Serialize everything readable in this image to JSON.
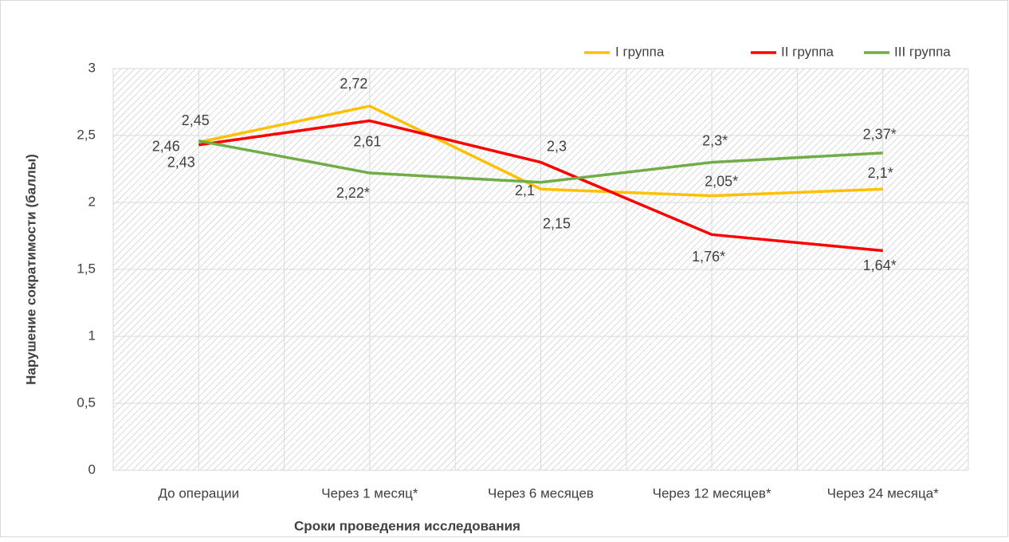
{
  "chart_data": {
    "type": "line",
    "x_label": "Сроки проведения исследования",
    "y_label": "Нарушение сократимости (баллы)",
    "categories": [
      "До операции",
      "Через 1 месяц*",
      "Через 6 месяцев",
      "Через 12 месяцев*",
      "Через 24 месяца*"
    ],
    "series": [
      {
        "name": "I группа",
        "color": "#FFC000",
        "values": [
          2.45,
          2.72,
          2.1,
          2.05,
          2.1
        ],
        "value_labels": [
          "2,45",
          "2,72",
          "2,1",
          "2,05*",
          "2,1*"
        ]
      },
      {
        "name": "II группа",
        "color": "#FF0000",
        "values": [
          2.43,
          2.61,
          2.3,
          1.76,
          1.64
        ],
        "value_labels": [
          "2,43",
          "2,61",
          "2,3",
          "1,76*",
          "1,64*"
        ]
      },
      {
        "name": "III группа",
        "color": "#70AD47",
        "values": [
          2.46,
          2.22,
          2.15,
          2.3,
          2.37
        ],
        "value_labels": [
          "2,46",
          "2,22*",
          "2,15",
          "2,3*",
          "2,37*"
        ]
      }
    ],
    "ylim": [
      0,
      3
    ],
    "yticks": [
      0,
      {
        "value": 0.5,
        "label": "0,5"
      },
      1,
      {
        "value": 1.5,
        "label": "1,5"
      },
      2,
      {
        "value": 2.5,
        "label": "2,5"
      },
      3
    ],
    "grid": true,
    "legend": "top-right"
  }
}
